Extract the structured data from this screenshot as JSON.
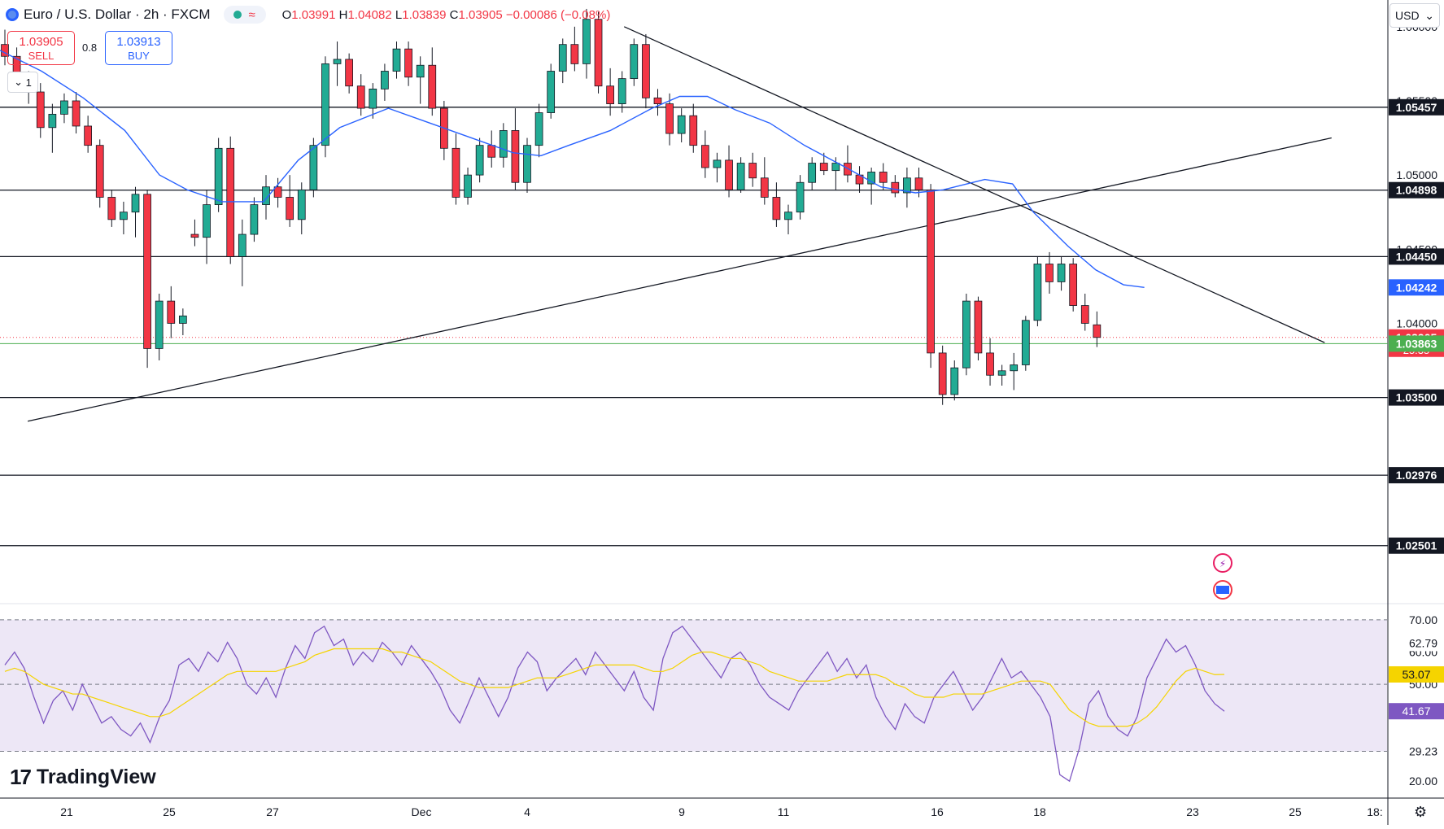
{
  "header": {
    "symbol": "Euro / U.S. Dollar · 2h · FXCM",
    "ohlc": {
      "open": "1.03991",
      "high": "1.04082",
      "low": "1.03839",
      "close": "1.03905",
      "change": "−0.00086 (−0.08%)"
    },
    "o_label": "O",
    "h_label": "H",
    "l_label": "L",
    "c_label": "C"
  },
  "trade": {
    "sell_price": "1.03905",
    "sell_label": "SELL",
    "buy_price": "1.03913",
    "buy_label": "BUY",
    "spread": "0.8"
  },
  "collapse_label": "1",
  "currency": "USD",
  "brand": "TradingView",
  "colors": {
    "up": "#22ab94",
    "down": "#f23645",
    "ma": "#2962ff",
    "rsi": "#7e57c2",
    "rsi_ma": "#f5d400",
    "rsi_band": "#ede7f6",
    "support": "#131722",
    "current": "#f23645",
    "bid_line": "#4caf50"
  },
  "chart_data": [
    {
      "type": "candlestick",
      "title": "Euro / U.S. Dollar",
      "timeframe": "2h",
      "ylim": [
        1.0211,
        1.0618
      ],
      "price_axis_ticks": [
        1.06,
        1.055,
        1.05,
        1.045,
        1.04
      ],
      "x_ticks": [
        "21",
        "25",
        "27",
        "Dec",
        "4",
        "9",
        "11",
        "16",
        "18",
        "23",
        "25",
        "18:"
      ],
      "horizontal_levels": [
        1.05457,
        1.04898,
        1.0445,
        1.035,
        1.02976,
        1.02501
      ],
      "price_labels": [
        {
          "label": "1.05457",
          "kind": "level"
        },
        {
          "label": "1.04898",
          "kind": "level"
        },
        {
          "label": "1.04450",
          "kind": "level"
        },
        {
          "label": "1.04242",
          "kind": "ma"
        },
        {
          "label": "1.03905",
          "kind": "last",
          "sub": "25:35"
        },
        {
          "label": "1.03863",
          "kind": "bid"
        },
        {
          "label": "1.03500",
          "kind": "level"
        },
        {
          "label": "1.02976",
          "kind": "level"
        },
        {
          "label": "1.02501",
          "kind": "level"
        }
      ],
      "trendlines": [
        {
          "name": "descending-trendline",
          "from": [
            0.45,
            1.06
          ],
          "to": [
            0.955,
            1.0387
          ]
        },
        {
          "name": "ascending-trendline",
          "from": [
            0.02,
            1.0334
          ],
          "to": [
            0.96,
            1.0525
          ]
        }
      ],
      "moving_average": [
        [
          0.0,
          1.0584
        ],
        [
          0.03,
          1.057
        ],
        [
          0.06,
          1.0552
        ],
        [
          0.09,
          1.053
        ],
        [
          0.115,
          1.05
        ],
        [
          0.135,
          1.049
        ],
        [
          0.16,
          1.0482
        ],
        [
          0.19,
          1.0482
        ],
        [
          0.215,
          1.051
        ],
        [
          0.245,
          1.0532
        ],
        [
          0.28,
          1.0545
        ],
        [
          0.31,
          1.0535
        ],
        [
          0.34,
          1.0525
        ],
        [
          0.37,
          1.0515
        ],
        [
          0.39,
          1.0513
        ],
        [
          0.41,
          1.052
        ],
        [
          0.44,
          1.053
        ],
        [
          0.47,
          1.0545
        ],
        [
          0.49,
          1.0553
        ],
        [
          0.51,
          1.0553
        ],
        [
          0.53,
          1.0544
        ],
        [
          0.555,
          1.0535
        ],
        [
          0.58,
          1.052
        ],
        [
          0.61,
          1.0505
        ],
        [
          0.635,
          1.0492
        ],
        [
          0.66,
          1.0488
        ],
        [
          0.68,
          1.049
        ],
        [
          0.71,
          1.0497
        ],
        [
          0.73,
          1.0494
        ],
        [
          0.745,
          1.0475
        ],
        [
          0.77,
          1.0452
        ],
        [
          0.79,
          1.0436
        ],
        [
          0.81,
          1.0426
        ],
        [
          0.825,
          1.04242
        ]
      ],
      "candles": [
        [
          1.0588,
          1.0598,
          1.0574,
          1.058
        ],
        [
          1.058,
          1.0586,
          1.0558,
          1.0563
        ],
        [
          1.0563,
          1.057,
          1.0548,
          1.0556
        ],
        [
          1.0556,
          1.0562,
          1.0525,
          1.0532
        ],
        [
          1.0532,
          1.0548,
          1.0515,
          1.0541
        ],
        [
          1.0541,
          1.0555,
          1.0535,
          1.055
        ],
        [
          1.055,
          1.0556,
          1.0528,
          1.0533
        ],
        [
          1.0533,
          1.054,
          1.0515,
          1.052
        ],
        [
          1.052,
          1.0524,
          1.0478,
          1.0485
        ],
        [
          1.0485,
          1.049,
          1.0465,
          1.047
        ],
        [
          1.047,
          1.0482,
          1.046,
          1.0475
        ],
        [
          1.0475,
          1.0492,
          1.0458,
          1.0487
        ],
        [
          1.0487,
          1.049,
          1.037,
          1.0383
        ],
        [
          1.0383,
          1.042,
          1.0375,
          1.0415
        ],
        [
          1.0415,
          1.0425,
          1.039,
          1.04
        ],
        [
          1.04,
          1.041,
          1.0392,
          1.0405
        ],
        [
          1.046,
          1.047,
          1.0452,
          1.0458
        ],
        [
          1.0458,
          1.049,
          1.044,
          1.048
        ],
        [
          1.048,
          1.0525,
          1.0475,
          1.0518
        ],
        [
          1.0518,
          1.0526,
          1.044,
          1.0445
        ],
        [
          1.0445,
          1.047,
          1.0425,
          1.046
        ],
        [
          1.046,
          1.0485,
          1.0455,
          1.048
        ],
        [
          1.048,
          1.05,
          1.047,
          1.0492
        ],
        [
          1.0492,
          1.0498,
          1.0478,
          1.0485
        ],
        [
          1.0485,
          1.05,
          1.0465,
          1.047
        ],
        [
          1.047,
          1.0495,
          1.046,
          1.049
        ],
        [
          1.049,
          1.0525,
          1.0485,
          1.052
        ],
        [
          1.052,
          1.058,
          1.0512,
          1.0575
        ],
        [
          1.0575,
          1.059,
          1.056,
          1.0578
        ],
        [
          1.0578,
          1.0582,
          1.0555,
          1.056
        ],
        [
          1.056,
          1.0568,
          1.054,
          1.0545
        ],
        [
          1.0545,
          1.0562,
          1.0538,
          1.0558
        ],
        [
          1.0558,
          1.0575,
          1.055,
          1.057
        ],
        [
          1.057,
          1.059,
          1.0565,
          1.0585
        ],
        [
          1.0585,
          1.059,
          1.056,
          1.0566
        ],
        [
          1.0566,
          1.058,
          1.0548,
          1.0574
        ],
        [
          1.0574,
          1.0586,
          1.054,
          1.0545
        ],
        [
          1.0545,
          1.055,
          1.051,
          1.0518
        ],
        [
          1.0518,
          1.0528,
          1.048,
          1.0485
        ],
        [
          1.0485,
          1.0505,
          1.048,
          1.05
        ],
        [
          1.05,
          1.0525,
          1.0495,
          1.052
        ],
        [
          1.052,
          1.053,
          1.0505,
          1.0512
        ],
        [
          1.0512,
          1.0535,
          1.0505,
          1.053
        ],
        [
          1.053,
          1.0545,
          1.049,
          1.0495
        ],
        [
          1.0495,
          1.0525,
          1.0488,
          1.052
        ],
        [
          1.052,
          1.0548,
          1.0512,
          1.0542
        ],
        [
          1.0542,
          1.0575,
          1.0538,
          1.057
        ],
        [
          1.057,
          1.0592,
          1.0562,
          1.0588
        ],
        [
          1.0588,
          1.06,
          1.057,
          1.0575
        ],
        [
          1.0575,
          1.0612,
          1.0565,
          1.0605
        ],
        [
          1.0605,
          1.061,
          1.0555,
          1.056
        ],
        [
          1.056,
          1.0572,
          1.054,
          1.0548
        ],
        [
          1.0548,
          1.057,
          1.0542,
          1.0565
        ],
        [
          1.0565,
          1.0592,
          1.056,
          1.0588
        ],
        [
          1.0588,
          1.0595,
          1.0545,
          1.0552
        ],
        [
          1.0552,
          1.0558,
          1.054,
          1.0548
        ],
        [
          1.0548,
          1.0555,
          1.052,
          1.0528
        ],
        [
          1.0528,
          1.0545,
          1.0522,
          1.054
        ],
        [
          1.054,
          1.0548,
          1.0515,
          1.052
        ],
        [
          1.052,
          1.053,
          1.0498,
          1.0505
        ],
        [
          1.0505,
          1.0515,
          1.0495,
          1.051
        ],
        [
          1.051,
          1.052,
          1.0485,
          1.049
        ],
        [
          1.049,
          1.0512,
          1.0488,
          1.0508
        ],
        [
          1.0508,
          1.0515,
          1.0492,
          1.0498
        ],
        [
          1.0498,
          1.0512,
          1.048,
          1.0485
        ],
        [
          1.0485,
          1.0495,
          1.0465,
          1.047
        ],
        [
          1.047,
          1.048,
          1.046,
          1.0475
        ],
        [
          1.0475,
          1.05,
          1.047,
          1.0495
        ],
        [
          1.0495,
          1.0512,
          1.049,
          1.0508
        ],
        [
          1.0508,
          1.0515,
          1.05,
          1.0503
        ],
        [
          1.0503,
          1.0512,
          1.049,
          1.0508
        ],
        [
          1.0508,
          1.052,
          1.0495,
          1.05
        ],
        [
          1.05,
          1.0506,
          1.0488,
          1.0494
        ],
        [
          1.0494,
          1.0505,
          1.048,
          1.0502
        ],
        [
          1.0502,
          1.0508,
          1.049,
          1.0495
        ],
        [
          1.0495,
          1.05,
          1.0485,
          1.0488
        ],
        [
          1.0488,
          1.0505,
          1.0478,
          1.0498
        ],
        [
          1.0498,
          1.0505,
          1.0485,
          1.049
        ],
        [
          1.049,
          1.0494,
          1.037,
          1.038
        ],
        [
          1.038,
          1.0385,
          1.0345,
          1.0352
        ],
        [
          1.0352,
          1.0375,
          1.0348,
          1.037
        ],
        [
          1.037,
          1.042,
          1.0365,
          1.0415
        ],
        [
          1.0415,
          1.0418,
          1.0375,
          1.038
        ],
        [
          1.038,
          1.039,
          1.0358,
          1.0365
        ],
        [
          1.0365,
          1.0372,
          1.0358,
          1.0368
        ],
        [
          1.0368,
          1.038,
          1.0355,
          1.0372
        ],
        [
          1.0372,
          1.0405,
          1.0368,
          1.0402
        ],
        [
          1.0402,
          1.0445,
          1.0398,
          1.044
        ],
        [
          1.044,
          1.0448,
          1.042,
          1.0428
        ],
        [
          1.0428,
          1.0445,
          1.0422,
          1.044
        ],
        [
          1.044,
          1.0444,
          1.0408,
          1.0412
        ],
        [
          1.0412,
          1.042,
          1.0395,
          1.04
        ],
        [
          1.0399,
          1.0408,
          1.0384,
          1.03905
        ]
      ]
    },
    {
      "type": "line",
      "title": "RSI",
      "ylim": [
        15,
        75
      ],
      "axis_ticks": [
        70.0,
        60.0,
        50.0,
        20.0
      ],
      "bands": {
        "upper": 70,
        "middle": 50,
        "lower": 29.23
      },
      "value_labels": [
        {
          "label": "62.79",
          "kind": "plain"
        },
        {
          "label": "53.07",
          "kind": "ma"
        },
        {
          "label": "41.67",
          "kind": "rsi"
        },
        {
          "label": "29.23",
          "kind": "plain"
        }
      ],
      "series": [
        {
          "values": [
            56,
            60,
            55,
            46,
            38,
            45,
            48,
            42,
            50,
            44,
            38,
            40,
            36,
            34,
            38,
            32,
            40,
            45,
            56,
            58,
            54,
            60,
            57,
            63,
            58,
            50,
            47,
            52,
            46,
            55,
            62,
            58,
            66,
            68,
            62,
            64,
            56,
            60,
            57,
            63,
            60,
            56,
            62,
            58,
            54,
            49,
            42,
            38,
            45,
            52,
            46,
            40,
            46,
            55,
            60,
            57,
            48,
            52,
            55,
            58,
            53,
            60,
            56,
            52,
            48,
            54,
            46,
            42,
            58,
            66,
            68,
            64,
            60,
            56,
            52,
            58,
            60,
            56,
            50,
            46,
            44,
            42,
            48,
            52,
            56,
            60,
            54,
            58,
            52,
            56,
            46,
            40,
            36,
            44,
            40,
            38,
            46,
            50,
            54,
            48,
            42,
            46,
            52,
            58,
            52,
            54,
            50,
            46,
            40,
            22,
            20,
            30,
            44,
            48,
            40,
            36,
            34,
            40,
            52,
            58,
            64,
            60,
            62,
            56,
            48,
            44,
            41.67
          ]
        },
        {
          "values": [
            54,
            55,
            54,
            52,
            50,
            49,
            48,
            47,
            47,
            46,
            45,
            44,
            43,
            42,
            41,
            40,
            40,
            41,
            43,
            45,
            47,
            49,
            51,
            53,
            54,
            54,
            54,
            54,
            54,
            55,
            56,
            57,
            59,
            60,
            61,
            61,
            61,
            61,
            61,
            61,
            60,
            60,
            59,
            58,
            57,
            55,
            53,
            51,
            50,
            49,
            49,
            49,
            49,
            50,
            51,
            52,
            52,
            52,
            53,
            54,
            55,
            56,
            56,
            56,
            56,
            56,
            55,
            54,
            54,
            55,
            57,
            59,
            60,
            60,
            59,
            58,
            58,
            57,
            56,
            54,
            53,
            52,
            51,
            51,
            51,
            51,
            52,
            53,
            53,
            53,
            53,
            52,
            50,
            49,
            47,
            46,
            46,
            46,
            47,
            47,
            47,
            47,
            48,
            49,
            50,
            51,
            51,
            51,
            50,
            46,
            42,
            40,
            38,
            37,
            37,
            37,
            37,
            38,
            40,
            43,
            47,
            51,
            54,
            55,
            54,
            53,
            53.07
          ]
        }
      ]
    }
  ]
}
